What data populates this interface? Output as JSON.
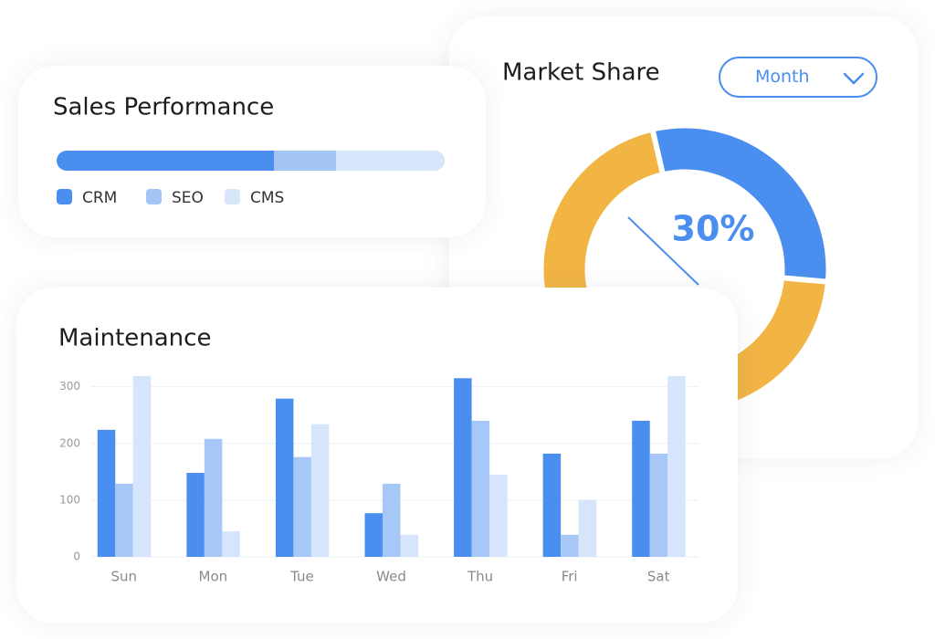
{
  "chart_data": [
    {
      "type": "bar",
      "title": "Sales Performance",
      "orientation": "horizontal",
      "stacked": true,
      "xlim": [
        0,
        100
      ],
      "series": [
        {
          "name": "CRM",
          "color": "#4a8ef0",
          "values": [
            56
          ]
        },
        {
          "name": "SEO",
          "color": "#a3c5f6",
          "values": [
            16
          ]
        },
        {
          "name": "CMS",
          "color": "#d8e6fb",
          "values": [
            28
          ]
        }
      ]
    },
    {
      "type": "donut",
      "title": "Market Share",
      "dropdown": "Month",
      "values": [
        30,
        70
      ],
      "value_labels": [
        "30%",
        null
      ],
      "colors": [
        "#4a8ef0",
        "#f2b544"
      ]
    },
    {
      "type": "bar",
      "title": "Maintenance",
      "categories": [
        "Sun",
        "Mon",
        "Tue",
        "Wed",
        "Thu",
        "Fri",
        "Sat"
      ],
      "series": [
        {
          "color": "#4a8ef0",
          "values": [
            224,
            148,
            279,
            77,
            315,
            182,
            240
          ]
        },
        {
          "color": "#a7c8f7",
          "values": [
            129,
            208,
            176,
            129,
            240,
            39,
            182
          ]
        },
        {
          "color": "#d6e5fb",
          "values": [
            319,
            45,
            234,
            39,
            145,
            100,
            319
          ]
        }
      ],
      "ylim": [
        0,
        330
      ],
      "yticks": [
        0,
        100,
        200,
        300
      ],
      "grid": true
    }
  ]
}
